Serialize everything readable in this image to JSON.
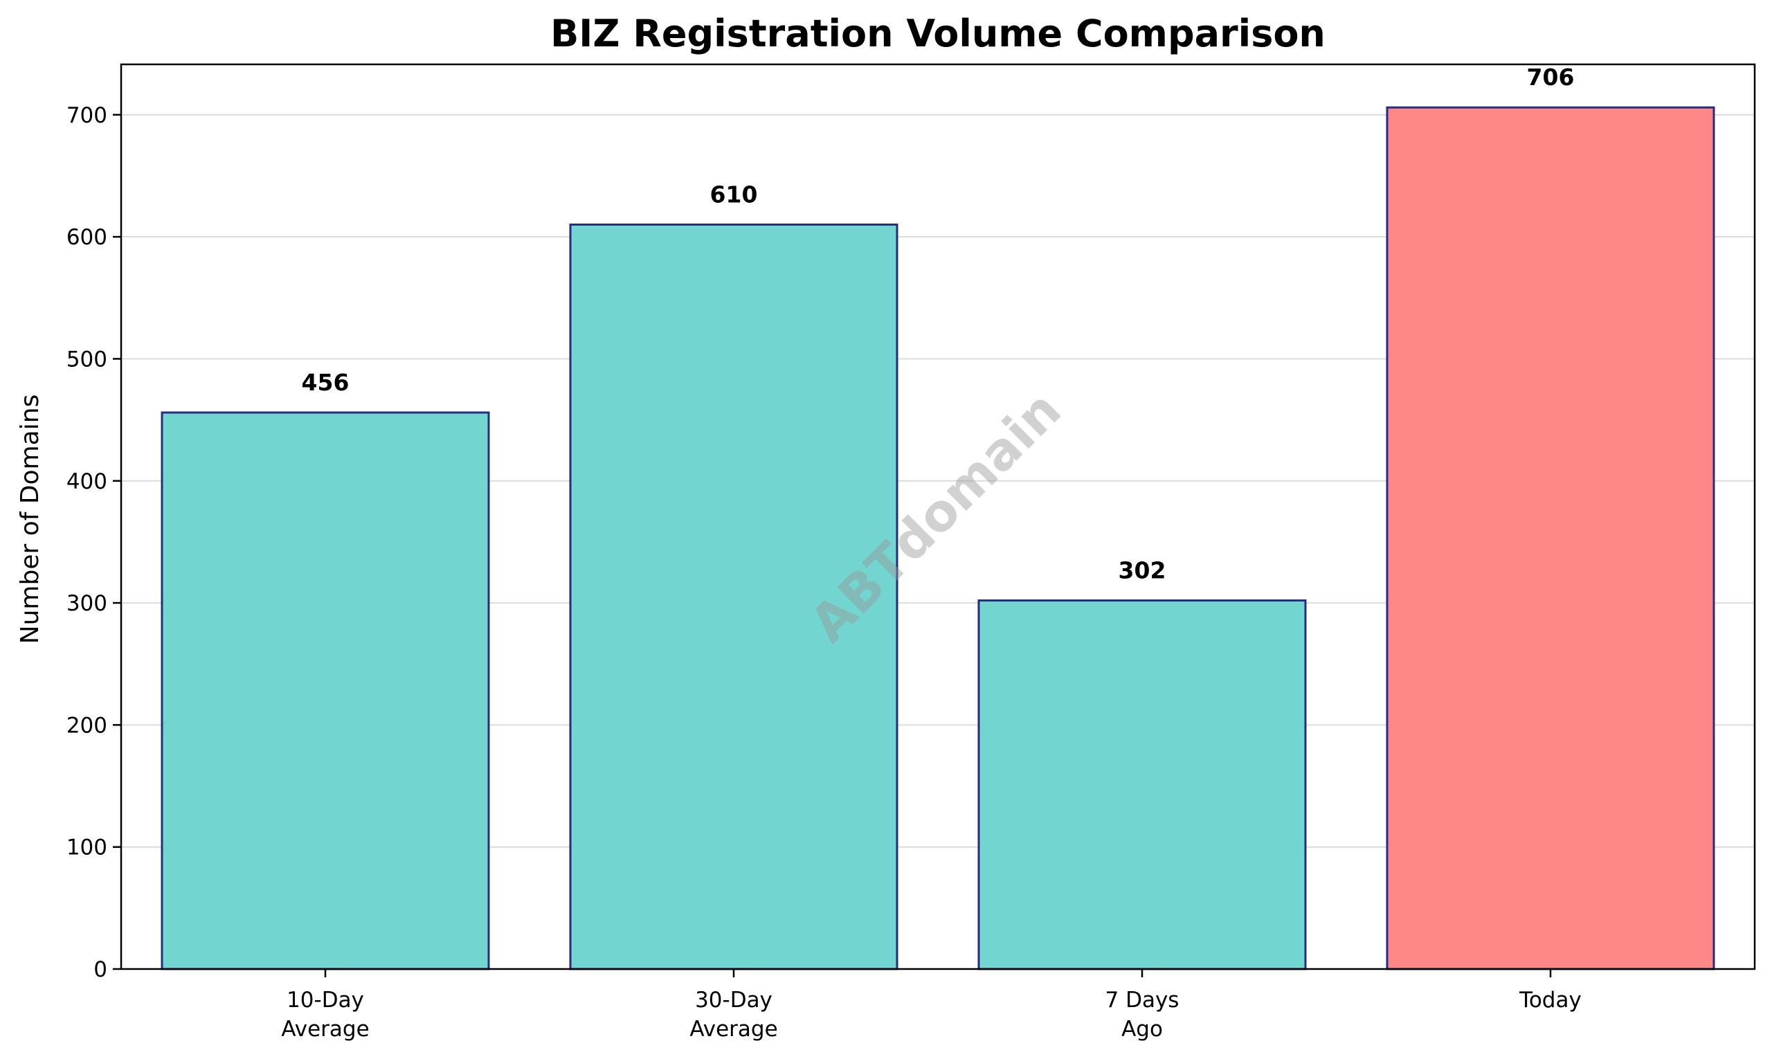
{
  "chart_data": {
    "type": "bar",
    "title": "BIZ Registration Volume Comparison",
    "xlabel": "",
    "ylabel": "Number of Domains",
    "categories": [
      [
        "10-Day",
        "Average"
      ],
      [
        "30-Day",
        "Average"
      ],
      [
        "7 Days",
        "Ago"
      ],
      [
        "Today"
      ]
    ],
    "values": [
      456,
      610,
      302,
      706
    ],
    "value_labels": [
      "456",
      "610",
      "302",
      "706"
    ],
    "bar_colors": [
      "#72d5cf",
      "#72d5cf",
      "#72d5cf",
      "#fd8887"
    ],
    "bar_edge_color": "#262c80",
    "yticks": [
      0,
      100,
      200,
      300,
      400,
      500,
      600,
      700
    ],
    "ytick_labels": [
      "0",
      "100",
      "200",
      "300",
      "400",
      "500",
      "600",
      "700"
    ],
    "ylim": [
      0,
      741.3
    ],
    "grid": "y-axis only",
    "legend": "none",
    "watermark": "ABTdomain"
  }
}
